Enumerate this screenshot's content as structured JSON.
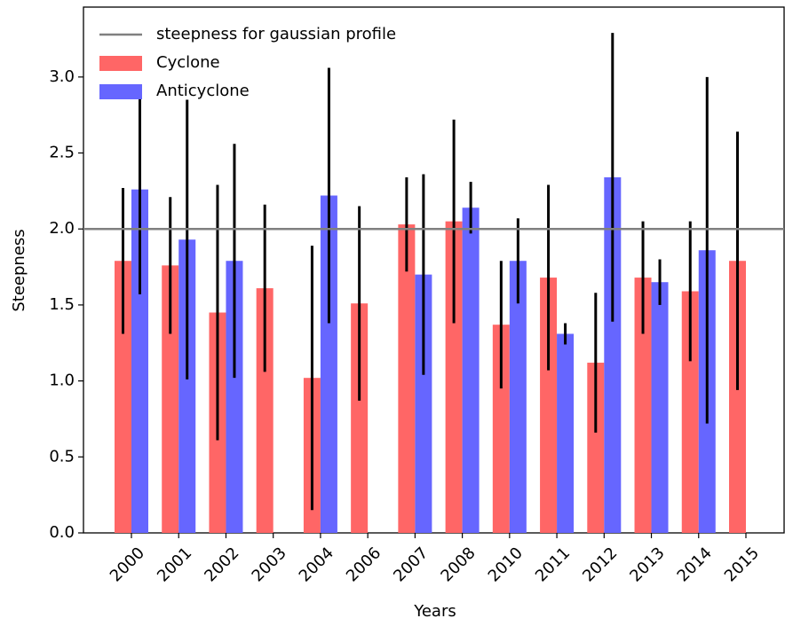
{
  "chart_data": {
    "type": "bar",
    "xlabel": "Years",
    "ylabel": "Steepness",
    "categories": [
      "2000",
      "2001",
      "2002",
      "2003",
      "2004",
      "2006",
      "2007",
      "2008",
      "2010",
      "2011",
      "2012",
      "2013",
      "2014",
      "2015"
    ],
    "series": [
      {
        "name": "Cyclone",
        "color": "#ff6666",
        "values": [
          1.79,
          1.76,
          1.45,
          1.61,
          1.02,
          1.51,
          2.03,
          2.05,
          1.37,
          1.68,
          1.12,
          1.68,
          1.59,
          1.79
        ],
        "errors": [
          0.48,
          0.45,
          0.84,
          0.55,
          0.87,
          0.64,
          0.31,
          0.67,
          0.42,
          0.61,
          0.46,
          0.37,
          0.46,
          0.85
        ]
      },
      {
        "name": "Anticyclone",
        "color": "#6666ff",
        "values": [
          2.26,
          1.93,
          1.79,
          null,
          2.22,
          null,
          1.7,
          2.14,
          1.79,
          1.31,
          2.34,
          1.65,
          1.86,
          null
        ],
        "errors": [
          0.69,
          0.92,
          0.77,
          null,
          0.84,
          null,
          0.66,
          0.17,
          0.28,
          0.07,
          0.95,
          0.15,
          1.14,
          null
        ]
      }
    ],
    "reference_line": {
      "value": 2.0,
      "label": "steepness for gaussian profile",
      "color": "#808080"
    },
    "ylim": [
      0,
      3.46
    ],
    "yticks": [
      {
        "value": 0,
        "label": "0.0"
      },
      0.5,
      {
        "value": 1,
        "label": "1.0"
      },
      1.5,
      {
        "value": 2,
        "label": "2.0"
      },
      2.5,
      {
        "value": 3,
        "label": "3.0"
      }
    ],
    "legend": "upper left"
  }
}
